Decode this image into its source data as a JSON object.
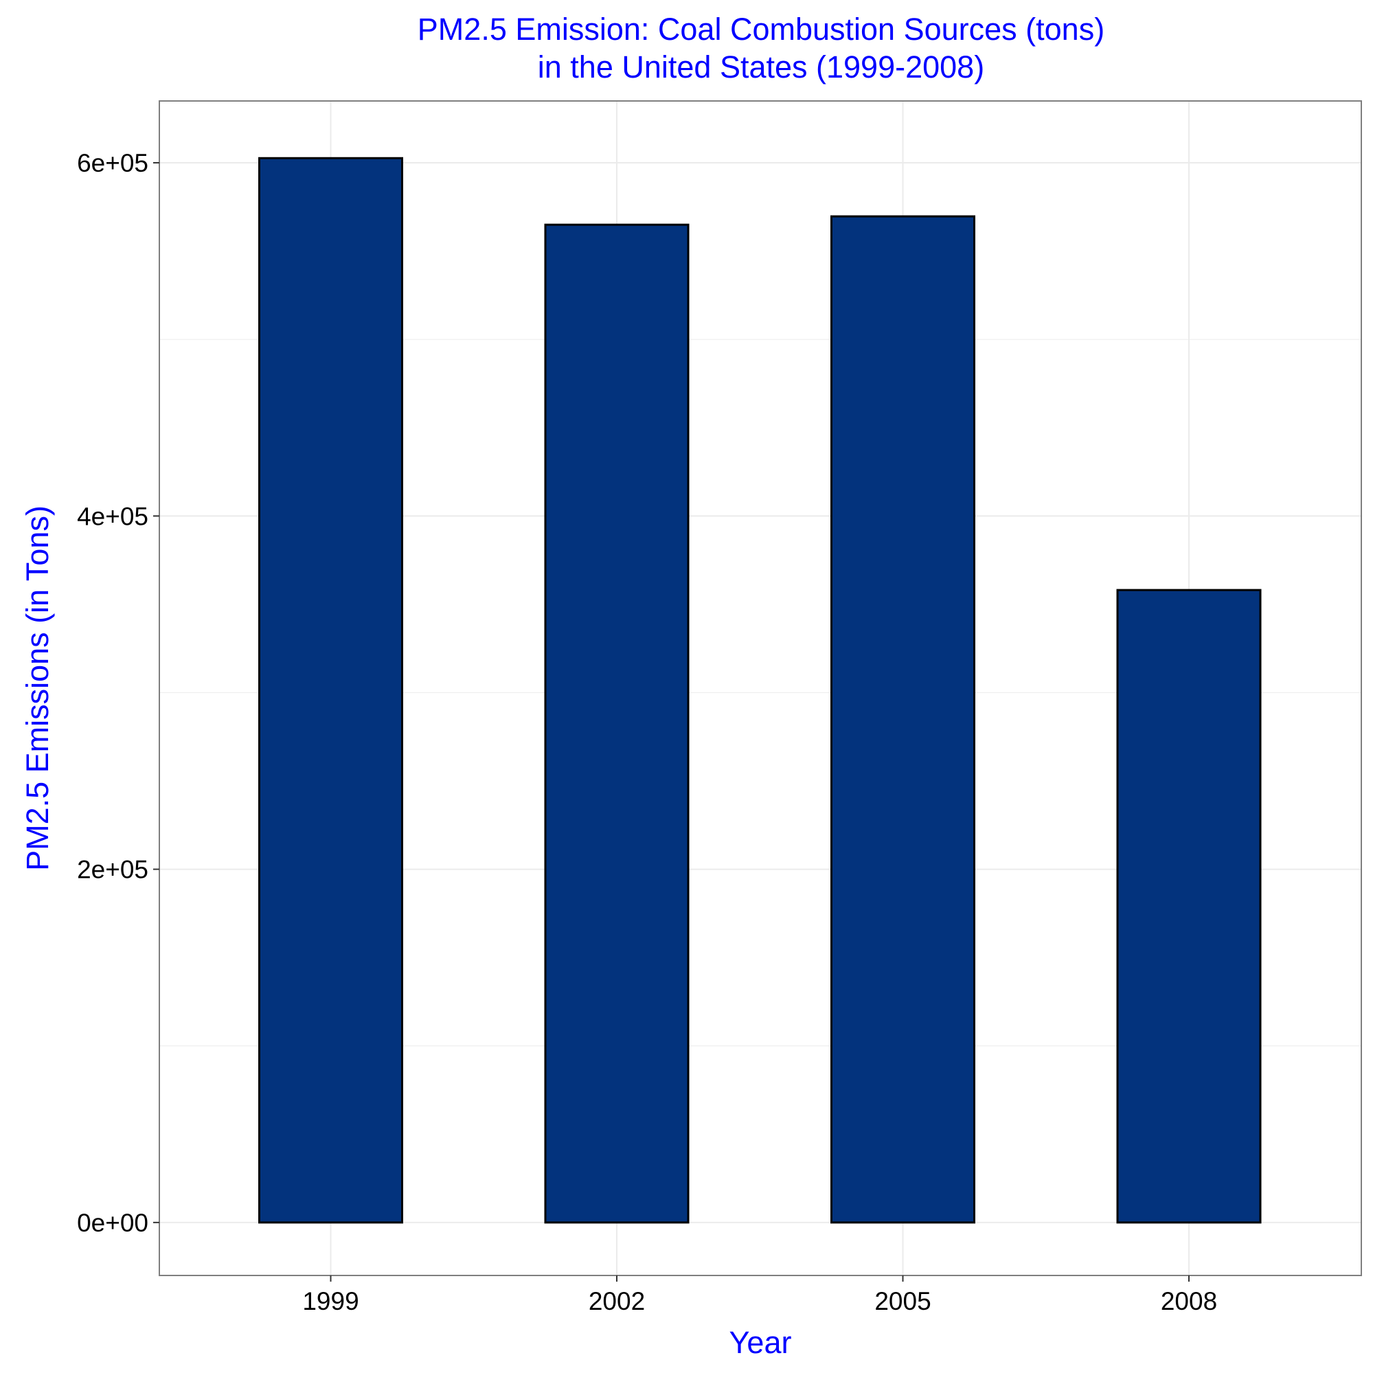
{
  "chart_data": {
    "type": "bar",
    "title": "PM2.5 Emission: Coal Combustion Sources (tons)",
    "subtitle": "in the United States (1999-2008)",
    "xlabel": "Year",
    "ylabel": "PM2.5 Emissions (in Tons)",
    "categories": [
      "1999",
      "2002",
      "2005",
      "2008"
    ],
    "values": [
      602624,
      564935,
      569654,
      358084
    ],
    "ylim": [
      -30000,
      635000
    ],
    "yticks": [
      0,
      200000,
      400000,
      600000
    ],
    "ytick_labels": [
      "0e+00",
      "2e+05",
      "4e+05",
      "6e+05"
    ],
    "grid": true,
    "legend": "none",
    "colors": {
      "bar_fill": "#03337D",
      "bar_outline": "#000000",
      "title": "#0000FF",
      "panel_border": "#7F7F7F",
      "grid": "#EBEBEB"
    }
  }
}
